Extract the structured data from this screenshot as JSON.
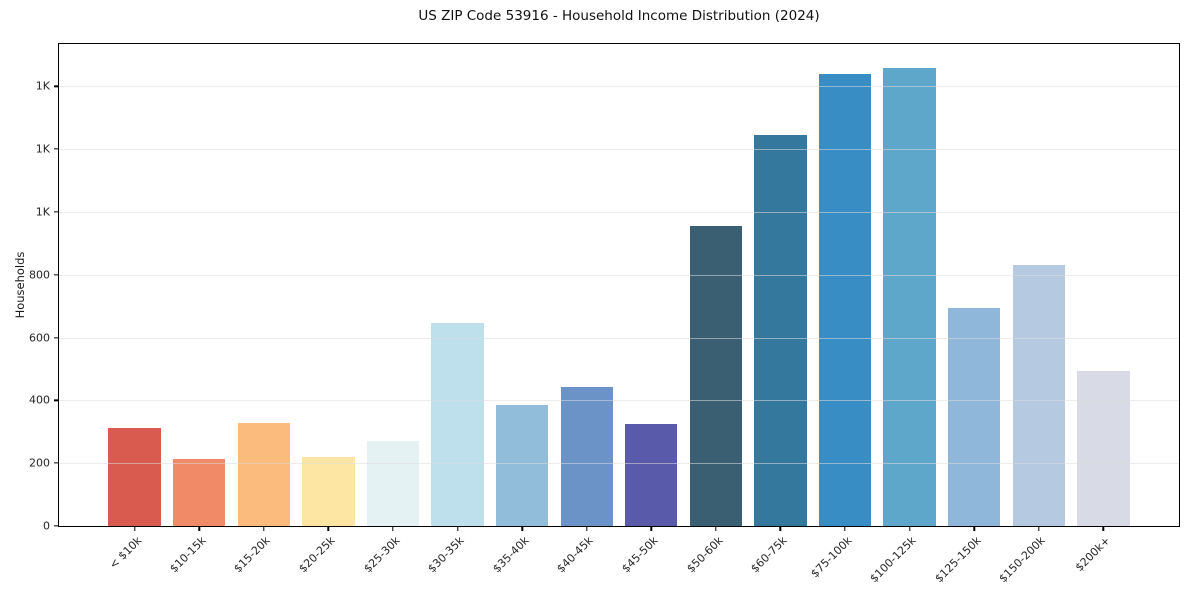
{
  "figure": {
    "background": "#ffffff",
    "text_color": "#1a1a1a"
  },
  "chart_data": {
    "type": "bar",
    "title": "US ZIP Code 53916 - Household Income Distribution (2024)",
    "xlabel": "",
    "ylabel": "Households",
    "legend": "none",
    "grid": "horizontal",
    "gridline_color": "#e7e7e7",
    "spine_color": "#000000",
    "ylim": [
      0,
      1535
    ],
    "yticks": [
      {
        "value": 0,
        "label": "0"
      },
      {
        "value": 200,
        "label": "200"
      },
      {
        "value": 400,
        "label": "400"
      },
      {
        "value": 600,
        "label": "600"
      },
      {
        "value": 800,
        "label": "800"
      },
      {
        "value": 1000,
        "label": "1K"
      },
      {
        "value": 1200,
        "label": "1K"
      },
      {
        "value": 1400,
        "label": "1K"
      }
    ],
    "categories": [
      "< $10k",
      "$10-15k",
      "$15-20k",
      "$20-25k",
      "$25-30k",
      "$30-35k",
      "$35-40k",
      "$40-45k",
      "$45-50k",
      "$50-60k",
      "$60-75k",
      "$75-100k",
      "$100-125k",
      "$125-150k",
      "$150-200k",
      "$200k+"
    ],
    "values": [
      313,
      214,
      329,
      220,
      271,
      648,
      384,
      442,
      326,
      956,
      1245,
      1440,
      1460,
      695,
      830,
      493
    ],
    "bar_colors": [
      "#d95b50",
      "#f08a67",
      "#fbbb7c",
      "#fde6a4",
      "#e4f2f4",
      "#bde0ec",
      "#91bddb",
      "#6b93c7",
      "#5a5aab",
      "#3a5f72",
      "#34799d",
      "#388ec4",
      "#5ea6ca",
      "#8fb7da",
      "#b5c9e0",
      "#d8dae6"
    ]
  }
}
